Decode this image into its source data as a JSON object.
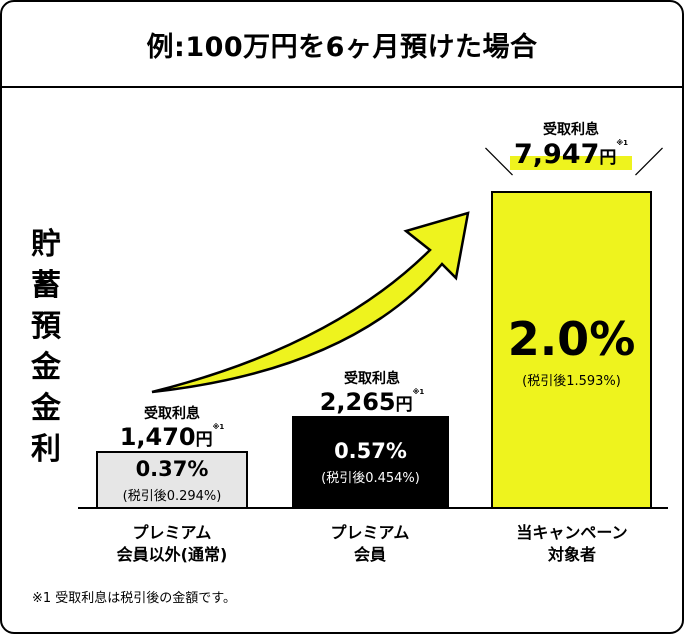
{
  "title": "例:100万円を6ヶ月預けた場合",
  "axis_label": "貯蓄預金金利",
  "colors": {
    "highlight": "#eef31e",
    "gray_bar": "#e6e6e6",
    "dark_bar": "#000000"
  },
  "chart_data": {
    "type": "bar",
    "title": "例:100万円を6ヶ月預けた場合",
    "ylabel": "貯蓄預金金利",
    "categories": [
      "プレミアム会員以外(通常)",
      "プレミアム会員",
      "当キャンペーン対象者"
    ],
    "values": [
      0.37,
      0.57,
      2.0
    ],
    "bars": [
      {
        "category_lines": [
          "プレミアム",
          "会員以外(通常)"
        ],
        "rate": "0.37%",
        "after_tax": "(税引後0.294%)",
        "interest_label": "受取利息",
        "interest_amount": "1,470",
        "interest_unit": "円",
        "interest_mark": "※1"
      },
      {
        "category_lines": [
          "プレミアム",
          "会員"
        ],
        "rate": "0.57%",
        "after_tax": "(税引後0.454%)",
        "interest_label": "受取利息",
        "interest_amount": "2,265",
        "interest_unit": "円",
        "interest_mark": "※1"
      },
      {
        "category_lines": [
          "当キャンペーン",
          "対象者"
        ],
        "rate": "2.0%",
        "after_tax": "(税引後1.593%)",
        "interest_label": "受取利息",
        "interest_amount": "7,947",
        "interest_unit": "円",
        "interest_mark": "※1"
      }
    ]
  },
  "footnote": "※1 受取利息は税引後の金額です。"
}
